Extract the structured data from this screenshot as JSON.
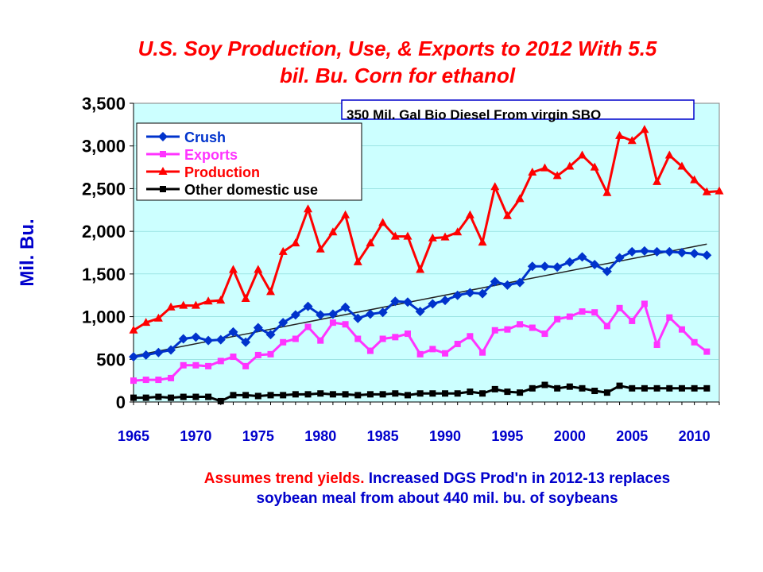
{
  "title": {
    "line1": "U.S. Soy Production, Use, & Exports to 2012 With 5.5",
    "line2": "bil. Bu. Corn for ethanol"
  },
  "footnote": {
    "part1": "Assumes trend yields.",
    "part2": "Increased DGS Prod'n in 2012-13 replaces",
    "line2": "soybean meal from about 440 mil. bu. of soybeans"
  },
  "colors": {
    "plot_background": "#ccffff",
    "crush": "#0033cc",
    "exports": "#ff33ff",
    "production": "#ff0000",
    "other": "#000000",
    "trend": "#222222",
    "title": "#ff0000",
    "axis_label": "#0000cc"
  },
  "chart_data": {
    "type": "line",
    "ylabel": "Mil. Bu.",
    "xlabel": "",
    "xlim": [
      1965,
      2012
    ],
    "ylim": [
      0,
      3500
    ],
    "yticks": [
      0,
      500,
      1000,
      1500,
      2000,
      2500,
      3000,
      3500
    ],
    "ytick_labels": [
      "0",
      "500",
      "1,000",
      "1,500",
      "2,000",
      "2,500",
      "3,000",
      "3,500"
    ],
    "xticks": [
      1965,
      1970,
      1975,
      1980,
      1985,
      1990,
      1995,
      2000,
      2005,
      2010
    ],
    "xtick_labels": [
      "1965",
      "1970",
      "1975",
      "1980",
      "1985",
      "1990",
      "1995",
      "2000",
      "2005",
      "2010"
    ],
    "legend_position": "top-left",
    "annotation": "350 Mil. Gal Bio Diesel From virgin SBO",
    "series": [
      {
        "name": "Crush",
        "marker": "diamond",
        "color": "#0033cc",
        "x": [
          1965,
          1966,
          1967,
          1968,
          1969,
          1970,
          1971,
          1972,
          1973,
          1974,
          1975,
          1976,
          1977,
          1978,
          1979,
          1980,
          1981,
          1982,
          1983,
          1984,
          1985,
          1986,
          1987,
          1988,
          1989,
          1990,
          1991,
          1992,
          1993,
          1994,
          1995,
          1996,
          1997,
          1998,
          1999,
          2000,
          2001,
          2002,
          2003,
          2004,
          2005,
          2006,
          2007,
          2008,
          2009,
          2010,
          2011
        ],
        "values": [
          530,
          550,
          580,
          610,
          740,
          760,
          720,
          730,
          820,
          700,
          870,
          790,
          930,
          1020,
          1120,
          1020,
          1030,
          1110,
          980,
          1030,
          1050,
          1180,
          1170,
          1060,
          1150,
          1190,
          1250,
          1280,
          1270,
          1410,
          1370,
          1400,
          1590,
          1590,
          1580,
          1640,
          1700,
          1610,
          1530,
          1690,
          1760,
          1770,
          1760,
          1760,
          1750,
          1740,
          1720
        ]
      },
      {
        "name": "Exports",
        "marker": "square",
        "color": "#ff33ff",
        "x": [
          1965,
          1966,
          1967,
          1968,
          1969,
          1970,
          1971,
          1972,
          1973,
          1974,
          1975,
          1976,
          1977,
          1978,
          1979,
          1980,
          1981,
          1982,
          1983,
          1984,
          1985,
          1986,
          1987,
          1988,
          1989,
          1990,
          1991,
          1992,
          1993,
          1994,
          1995,
          1996,
          1997,
          1998,
          1999,
          2000,
          2001,
          2002,
          2003,
          2004,
          2005,
          2006,
          2007,
          2008,
          2009,
          2010,
          2011
        ],
        "values": [
          250,
          260,
          260,
          280,
          430,
          430,
          420,
          480,
          530,
          420,
          550,
          560,
          700,
          740,
          880,
          720,
          930,
          910,
          740,
          600,
          740,
          760,
          800,
          560,
          620,
          570,
          680,
          770,
          580,
          840,
          850,
          910,
          870,
          800,
          970,
          1000,
          1060,
          1050,
          890,
          1100,
          950,
          1150,
          670,
          990,
          850,
          700,
          590
        ]
      },
      {
        "name": "Production",
        "marker": "triangle",
        "color": "#ff0000",
        "x": [
          1965,
          1966,
          1967,
          1968,
          1969,
          1970,
          1971,
          1972,
          1973,
          1974,
          1975,
          1976,
          1977,
          1978,
          1979,
          1980,
          1981,
          1982,
          1983,
          1984,
          1985,
          1986,
          1987,
          1988,
          1989,
          1990,
          1991,
          1992,
          1993,
          1994,
          1995,
          1996,
          1997,
          1998,
          1999,
          2000,
          2001,
          2002,
          2003,
          2004,
          2005,
          2006,
          2007,
          2008,
          2009,
          2010,
          2011,
          2012
        ],
        "values": [
          840,
          930,
          980,
          1110,
          1130,
          1130,
          1180,
          1190,
          1550,
          1210,
          1550,
          1290,
          1760,
          1860,
          2260,
          1790,
          1990,
          2190,
          1640,
          1860,
          2100,
          1940,
          1940,
          1550,
          1920,
          1930,
          1990,
          2190,
          1870,
          2520,
          2180,
          2380,
          2690,
          2740,
          2650,
          2760,
          2890,
          2750,
          2450,
          3120,
          3060,
          3190,
          2580,
          2890,
          2760,
          2600,
          2460,
          2470
        ]
      },
      {
        "name": "Other domestic use",
        "marker": "square",
        "color": "#000000",
        "x": [
          1965,
          1966,
          1967,
          1968,
          1969,
          1970,
          1971,
          1972,
          1973,
          1974,
          1975,
          1976,
          1977,
          1978,
          1979,
          1980,
          1981,
          1982,
          1983,
          1984,
          1985,
          1986,
          1987,
          1988,
          1989,
          1990,
          1991,
          1992,
          1993,
          1994,
          1995,
          1996,
          1997,
          1998,
          1999,
          2000,
          2001,
          2002,
          2003,
          2004,
          2005,
          2006,
          2007,
          2008,
          2009,
          2010,
          2011
        ],
        "values": [
          50,
          50,
          60,
          50,
          60,
          60,
          60,
          10,
          80,
          80,
          70,
          80,
          80,
          90,
          90,
          100,
          90,
          90,
          80,
          90,
          90,
          100,
          80,
          100,
          100,
          100,
          100,
          120,
          100,
          150,
          120,
          110,
          160,
          200,
          160,
          180,
          160,
          130,
          110,
          190,
          160,
          160,
          160,
          160,
          160,
          160,
          160
        ]
      }
    ],
    "trendline": {
      "x": [
        1965,
        2011
      ],
      "values": [
        540,
        1850
      ]
    }
  }
}
